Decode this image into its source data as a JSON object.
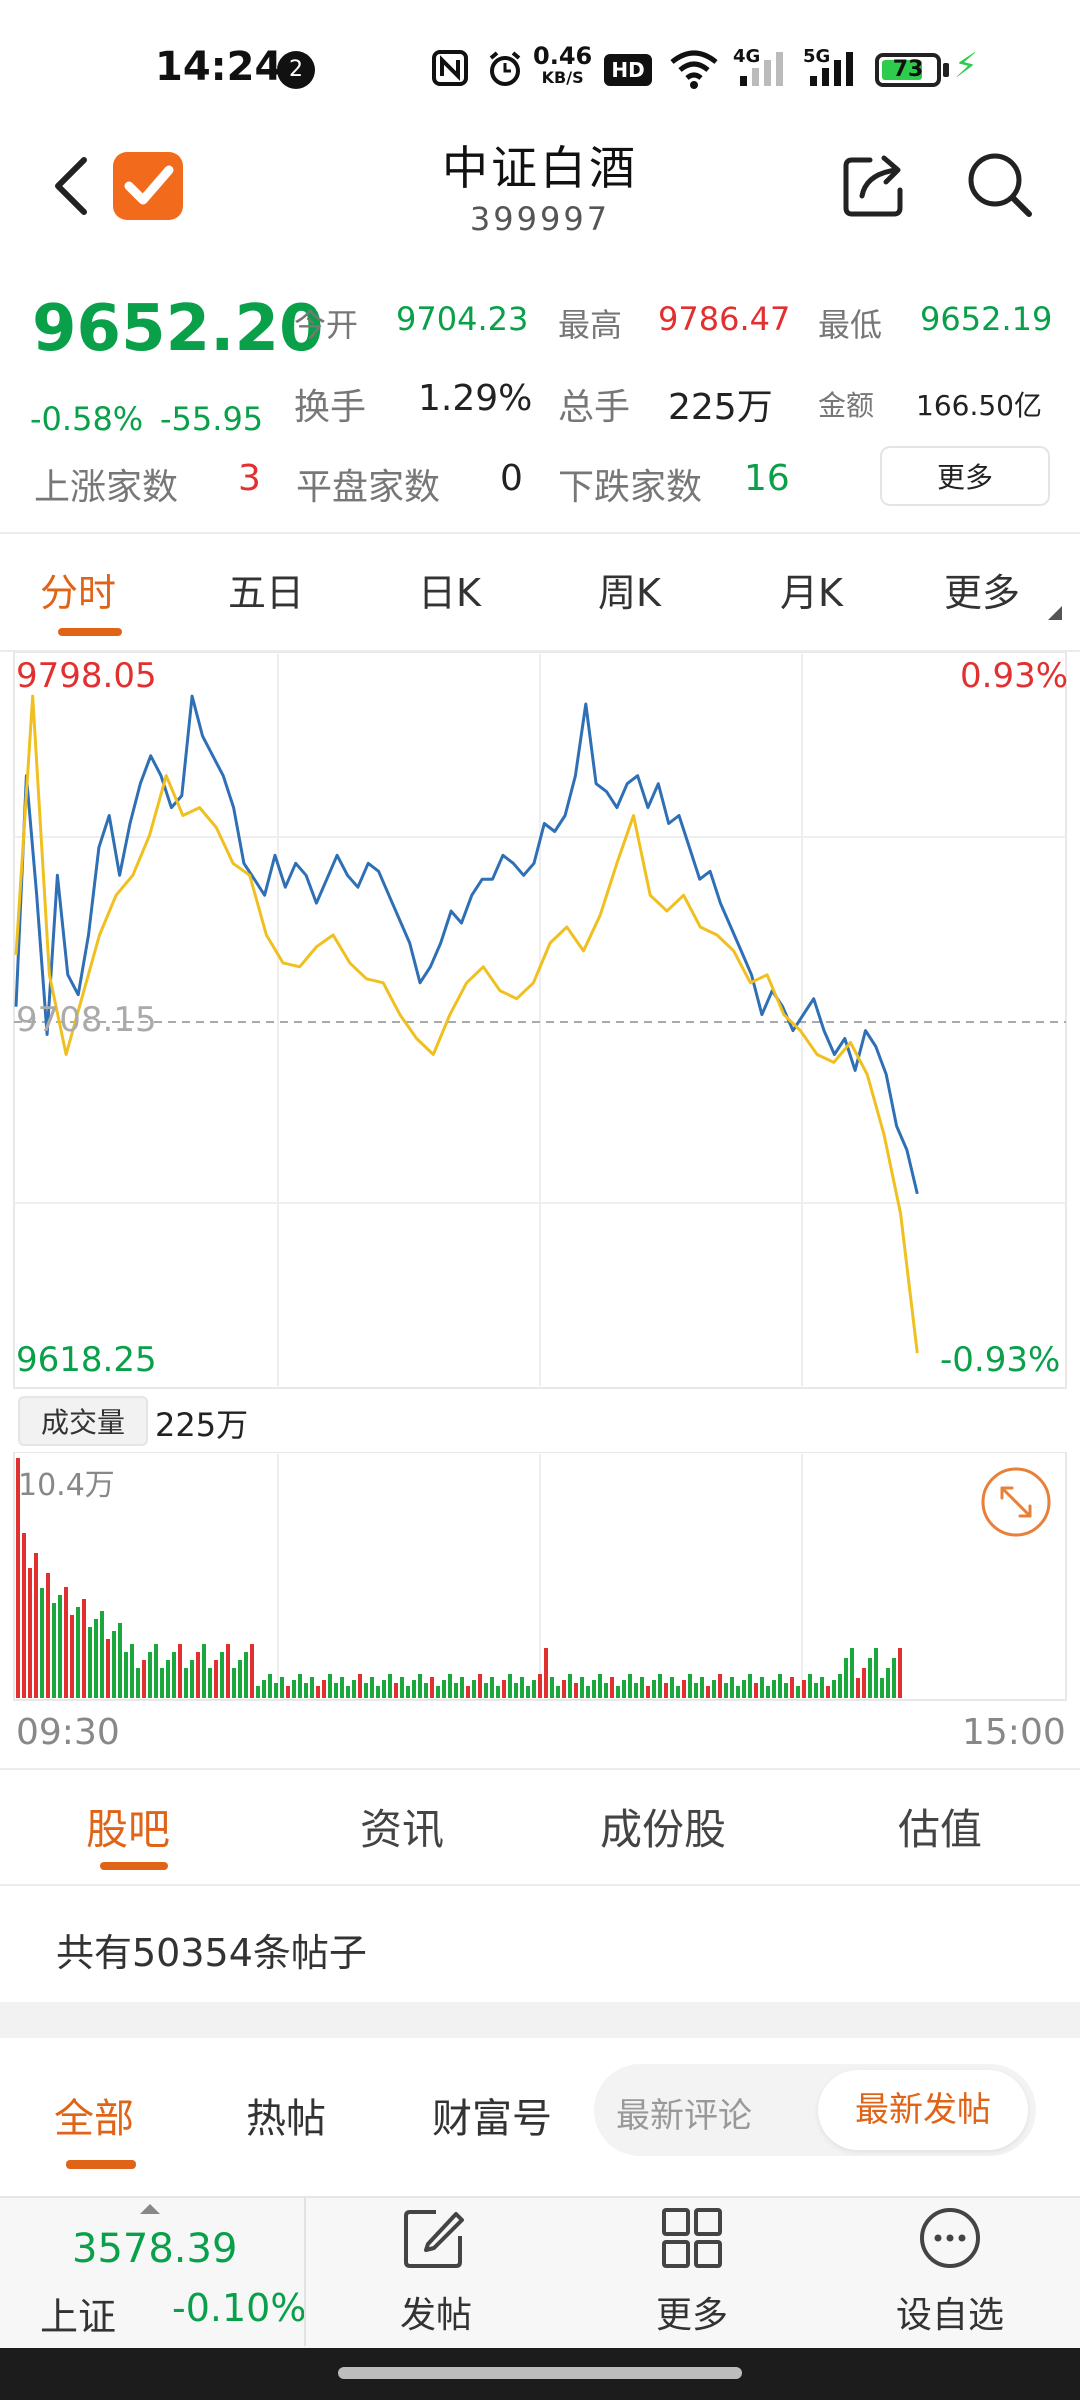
{
  "status_bar": {
    "time": "14:24",
    "notification_count": "2",
    "net_speed_value": "0.46",
    "net_speed_unit": "KB/S",
    "hd_label": "HD",
    "signal_4g": "4G",
    "signal_5g": "5G",
    "battery_level": "73"
  },
  "header": {
    "title": "中证白酒",
    "code": "399997"
  },
  "quote": {
    "price": "9652.20",
    "change_pct": "-0.58%",
    "change_abs": "-55.95",
    "open_label": "今开",
    "open_value": "9704.23",
    "high_label": "最高",
    "high_value": "9786.47",
    "low_label": "最低",
    "low_value": "9652.19",
    "turnover_label": "换手",
    "turnover_value": "1.29%",
    "volume_label": "总手",
    "volume_value": "225万",
    "amount_label": "金额",
    "amount_value": "166.50亿",
    "up_label": "上涨家数",
    "up_value": "3",
    "flat_label": "平盘家数",
    "flat_value": "0",
    "down_label": "下跌家数",
    "down_value": "16",
    "more_label": "更多"
  },
  "chart_tabs": [
    "分时",
    "五日",
    "日K",
    "周K",
    "月K",
    "更多"
  ],
  "chart_data": {
    "type": "line",
    "y_top_label": "9798.05",
    "y_mid_label": "9708.15",
    "y_bottom_label": "9618.25",
    "pct_top_label": "0.93%",
    "pct_bottom_label": "-0.93%",
    "ylim": [
      9618.25,
      9798.05
    ],
    "series": [
      {
        "color": "#2f6fb5",
        "values": [
          9712,
          9770,
          9740,
          9705,
          9745,
          9720,
          9715,
          9730,
          9752,
          9760,
          9745,
          9758,
          9768,
          9775,
          9770,
          9762,
          9765,
          9790,
          9780,
          9775,
          9770,
          9762,
          9748,
          9744,
          9740,
          9750,
          9742,
          9748,
          9745,
          9738,
          9744,
          9750,
          9745,
          9742,
          9748,
          9746,
          9740,
          9734,
          9728,
          9718,
          9722,
          9728,
          9736,
          9733,
          9740,
          9744,
          9744,
          9750,
          9748,
          9745,
          9748,
          9758,
          9756,
          9760,
          9770,
          9788,
          9768,
          9766,
          9762,
          9768,
          9770,
          9762,
          9768,
          9758,
          9760,
          9752,
          9744,
          9746,
          9738,
          9732,
          9726,
          9720,
          9710,
          9716,
          9712,
          9706,
          9710,
          9714,
          9706,
          9700,
          9704,
          9696,
          9706,
          9702,
          9695,
          9682,
          9676,
          9665
        ]
      },
      {
        "color": "#f0c020",
        "values": [
          9725,
          9790,
          9720,
          9700,
          9715,
          9730,
          9740,
          9745,
          9755,
          9770,
          9760,
          9762,
          9757,
          9748,
          9745,
          9730,
          9723,
          9722,
          9727,
          9730,
          9723,
          9719,
          9718,
          9710,
          9704,
          9700,
          9710,
          9718,
          9722,
          9716,
          9714,
          9718,
          9728,
          9732,
          9726,
          9735,
          9748,
          9760,
          9740,
          9736,
          9740,
          9732,
          9730,
          9726,
          9718,
          9720,
          9710,
          9706,
          9700,
          9698,
          9703,
          9695,
          9680,
          9660,
          9625
        ]
      }
    ]
  },
  "volume": {
    "tag": "成交量",
    "total": "225万",
    "max_label": "10.4万",
    "start_time": "09:30",
    "end_time": "15:00"
  },
  "content_tabs": [
    "股吧",
    "资讯",
    "成份股",
    "估值"
  ],
  "posts": {
    "count_text": "共有50354条帖子"
  },
  "filter_tabs": [
    "全部",
    "热帖",
    "财富号"
  ],
  "sort_options": [
    "最新评论",
    "最新发帖"
  ],
  "bottom_bar": {
    "index_value": "3578.39",
    "index_name": "上证",
    "index_pct": "-0.10%",
    "post_label": "发帖",
    "more_label": "更多",
    "watch_label": "设自选"
  },
  "colors": {
    "accent": "#e06418",
    "up": "#e23030",
    "down": "#0aa04a",
    "line_main": "#2f6fb5",
    "line_avg": "#f0c020"
  }
}
